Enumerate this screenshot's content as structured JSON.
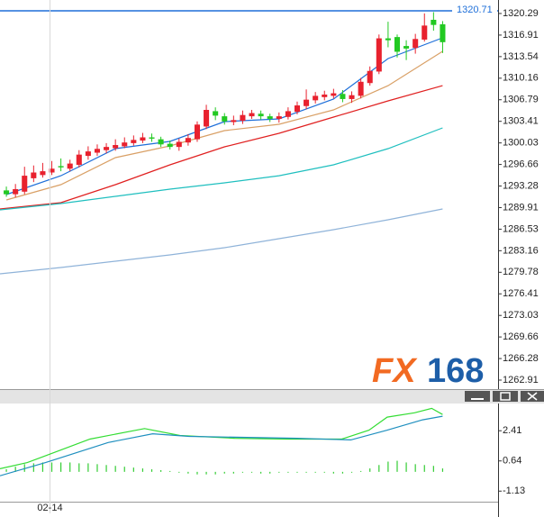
{
  "chart_data": [
    {
      "type": "candlestick",
      "up_color": "#e8212e",
      "down_color": "#22c922",
      "open": [
        1292.6,
        1292.0,
        1292.4,
        1294.5,
        1295.0,
        1295.4,
        1296.4,
        1296.0,
        1296.6,
        1298.0,
        1298.5,
        1298.9,
        1299.2,
        1299.5,
        1300.0,
        1300.4,
        1300.9,
        1300.6,
        1299.9,
        1299.4,
        1300.1,
        1300.6,
        1302.6,
        1305.0,
        1304.2,
        1303.3,
        1303.5,
        1304.2,
        1304.6,
        1304.2,
        1303.8,
        1304.1,
        1304.9,
        1305.8,
        1306.7,
        1307.2,
        1307.4,
        1307.7,
        1306.9,
        1307.4,
        1309.4,
        1311.2,
        1316.4,
        1316.6,
        1315.2,
        1314.9,
        1316.2,
        1319.3,
        1318.6
      ],
      "high": [
        1293.2,
        1293.6,
        1296.3,
        1296.5,
        1296.9,
        1297.2,
        1297.6,
        1297.4,
        1298.9,
        1299.5,
        1299.8,
        1300.0,
        1300.6,
        1300.9,
        1301.2,
        1301.6,
        1301.5,
        1301.0,
        1300.4,
        1300.7,
        1301.4,
        1303.4,
        1306.0,
        1305.6,
        1304.7,
        1304.3,
        1305.1,
        1305.2,
        1305.1,
        1304.6,
        1304.8,
        1305.6,
        1306.5,
        1308.4,
        1308.0,
        1308.2,
        1308.5,
        1308.3,
        1308.1,
        1310.2,
        1312.0,
        1317.0,
        1319.0,
        1317.0,
        1316.1,
        1317.1,
        1320.3,
        1320.5,
        1319.1
      ],
      "low": [
        1291.6,
        1291.5,
        1292.0,
        1293.9,
        1294.6,
        1295.0,
        1295.6,
        1295.6,
        1296.2,
        1297.4,
        1298.0,
        1298.4,
        1298.8,
        1299.2,
        1299.6,
        1300.0,
        1300.2,
        1299.4,
        1299.0,
        1298.8,
        1299.6,
        1300.2,
        1302.2,
        1303.6,
        1302.9,
        1302.8,
        1303.0,
        1303.8,
        1303.7,
        1303.3,
        1303.2,
        1303.7,
        1304.5,
        1305.3,
        1306.2,
        1306.7,
        1307.0,
        1306.4,
        1306.3,
        1307.0,
        1309.0,
        1310.8,
        1315.0,
        1313.4,
        1313.0,
        1314.0,
        1315.9,
        1317.6,
        1314.1
      ],
      "close": [
        1292.0,
        1292.8,
        1294.9,
        1295.4,
        1295.6,
        1296.0,
        1296.2,
        1296.8,
        1298.2,
        1298.7,
        1299.1,
        1299.4,
        1299.7,
        1300.1,
        1300.5,
        1300.9,
        1300.7,
        1299.8,
        1299.4,
        1300.2,
        1300.8,
        1302.9,
        1305.2,
        1304.3,
        1303.4,
        1303.6,
        1304.4,
        1304.7,
        1304.2,
        1303.8,
        1304.2,
        1305.0,
        1305.9,
        1306.8,
        1307.4,
        1307.6,
        1307.8,
        1306.9,
        1307.5,
        1309.6,
        1311.3,
        1316.4,
        1316.1,
        1314.3,
        1314.8,
        1316.3,
        1318.4,
        1318.5,
        1315.8
      ],
      "overlays": [
        {
          "color": "#1e6fd9",
          "x": [
            0,
            6,
            12,
            18,
            24,
            30,
            36,
            42,
            48
          ],
          "values": [
            1291.95,
            1294.9,
            1299.14,
            1300.27,
            1303.37,
            1303.79,
            1306.89,
            1313.24,
            1316.48
          ]
        },
        {
          "color": "#d9a066",
          "x": [
            0,
            6,
            12,
            18,
            24,
            30,
            36,
            42,
            48
          ],
          "values": [
            1291.1,
            1293.5,
            1297.73,
            1299.56,
            1301.96,
            1302.95,
            1305.2,
            1309.0,
            1314.36
          ]
        },
        {
          "color": "#e02020",
          "x": [
            -0.7,
            6,
            12,
            18,
            24,
            30,
            36,
            42,
            48
          ],
          "values": [
            1289.69,
            1290.68,
            1293.5,
            1296.6,
            1299.42,
            1301.53,
            1304.07,
            1306.61,
            1309.0
          ]
        },
        {
          "color": "#1fbfbf",
          "x": [
            -0.7,
            6,
            12,
            18,
            24,
            30,
            36,
            42,
            48
          ],
          "values": [
            1289.55,
            1290.54,
            1291.67,
            1292.79,
            1293.78,
            1294.9,
            1296.6,
            1299.14,
            1302.38
          ]
        },
        {
          "color": "#8fb3d9",
          "x": [
            -0.7,
            6,
            12,
            18,
            24,
            30,
            36,
            42,
            48
          ],
          "values": [
            1279.54,
            1280.53,
            1281.52,
            1282.5,
            1283.63,
            1285.04,
            1286.45,
            1288.0,
            1289.69
          ]
        }
      ],
      "last_price": 1320.71,
      "last_price_color": "#1e6fd9",
      "xlim": [
        -0.7,
        54.1
      ],
      "ylim": [
        1261.78,
        1322.4
      ],
      "yticks": [
        1320.29,
        1316.91,
        1313.54,
        1310.16,
        1306.79,
        1303.41,
        1300.03,
        1296.66,
        1293.28,
        1289.91,
        1286.53,
        1283.16,
        1279.78,
        1276.41,
        1273.03,
        1269.66,
        1266.28,
        1262.91
      ],
      "watermark": {
        "left": "FX",
        "right": "168"
      }
    },
    {
      "type": "macd",
      "series": [
        {
          "color": "#33dd33",
          "x": [
            -0.7,
            2.3,
            9.2,
            15.2,
            19.1,
            25.1,
            31,
            36.9,
            39.9,
            41.9,
            44.9,
            46.8,
            48
          ],
          "values": [
            0.18,
            0.54,
            1.92,
            2.54,
            2.13,
            1.97,
            1.92,
            1.92,
            2.44,
            3.21,
            3.46,
            3.72,
            3.36
          ]
        },
        {
          "color": "#1f8fbf",
          "x": [
            -0.7,
            4.3,
            11.2,
            16.1,
            20.1,
            25.1,
            32,
            37.9,
            41.9,
            45.8,
            48
          ],
          "values": [
            -0.23,
            0.54,
            1.72,
            2.23,
            2.08,
            2.03,
            1.97,
            1.87,
            2.44,
            3.05,
            3.26
          ]
        }
      ],
      "histogram": {
        "color": "#33cc33",
        "values": [
          0.15,
          0.3,
          0.45,
          0.5,
          0.55,
          0.55,
          0.55,
          0.55,
          0.5,
          0.5,
          0.45,
          0.4,
          0.35,
          0.3,
          0.25,
          0.2,
          0.15,
          0.1,
          0.05,
          -0.05,
          -0.1,
          -0.15,
          -0.15,
          -0.15,
          -0.1,
          -0.1,
          -0.05,
          -0.05,
          -0.1,
          -0.1,
          -0.05,
          -0.05,
          -0.05,
          -0.05,
          -0.05,
          -0.05,
          -0.1,
          -0.1,
          -0.05,
          0.05,
          0.2,
          0.4,
          0.6,
          0.65,
          0.55,
          0.45,
          0.4,
          0.35,
          0.2
        ]
      },
      "xlim": [
        -0.7,
        54.1
      ],
      "ylim": [
        -1.75,
        3.9
      ],
      "yticks": [
        2.41,
        0.64,
        -1.13
      ],
      "xticks": [
        {
          "value": 4.8,
          "label": "02-14"
        }
      ]
    }
  ]
}
